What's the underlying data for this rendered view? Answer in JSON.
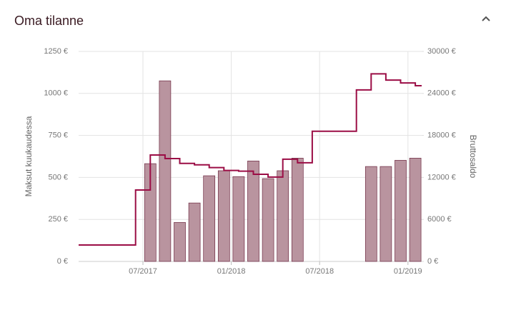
{
  "chart_data": {
    "type": "bar-line",
    "title": "Oma tilanne",
    "y_label": "Maksut kuukaudessa",
    "y2_label": "Bruttosaldo",
    "ylim": [
      0,
      1250
    ],
    "yticks": [
      {
        "value": 0,
        "label": "0 €"
      },
      {
        "value": 250,
        "label": "250 €"
      },
      {
        "value": 500,
        "label": "500 €"
      },
      {
        "value": 750,
        "label": "750 €"
      },
      {
        "value": 1000,
        "label": "1000 €"
      },
      {
        "value": 1250,
        "label": "1250 €"
      }
    ],
    "y2lim": [
      0,
      30000
    ],
    "y2ticks": [
      {
        "value": 0,
        "label": "0 €"
      },
      {
        "value": 6000,
        "label": "6000 €"
      },
      {
        "value": 12000,
        "label": "12000 €"
      },
      {
        "value": 18000,
        "label": "18000 €"
      },
      {
        "value": 24000,
        "label": "24000 €"
      },
      {
        "value": 30000,
        "label": "30000 €"
      }
    ],
    "xticks": [
      "07/2017",
      "01/2018",
      "07/2018",
      "01/2019"
    ],
    "grid": true,
    "series": [
      {
        "name": "Maksut",
        "kind": "bar",
        "color": "#b9949f",
        "x": [
          "07/2017",
          "08/2017",
          "09/2017",
          "10/2017",
          "11/2017",
          "12/2017",
          "01/2018",
          "02/2018",
          "03/2018",
          "04/2018",
          "05/2018",
          "10/2018",
          "11/2018",
          "12/2018",
          "01/2019"
        ],
        "values": [
          582,
          1075,
          232,
          348,
          510,
          540,
          505,
          598,
          493,
          540,
          615,
          565,
          565,
          602,
          615
        ]
      },
      {
        "name": "Bruttosaldo",
        "kind": "line",
        "axis": "y2",
        "color": "#9b0d45",
        "x": [
          "02/2017",
          "06/2017",
          "07/2017",
          "08/2017",
          "09/2017",
          "10/2017",
          "11/2017",
          "12/2017",
          "01/2018",
          "02/2018",
          "03/2018",
          "04/2018",
          "05/2018",
          "06/2018",
          "09/2018",
          "10/2018",
          "11/2018",
          "12/2018",
          "01/2019"
        ],
        "values": [
          2350,
          10200,
          15200,
          14700,
          14000,
          13800,
          13400,
          13000,
          12900,
          12450,
          12050,
          14600,
          14100,
          18600,
          24500,
          26800,
          25900,
          25500,
          25100
        ]
      }
    ]
  }
}
